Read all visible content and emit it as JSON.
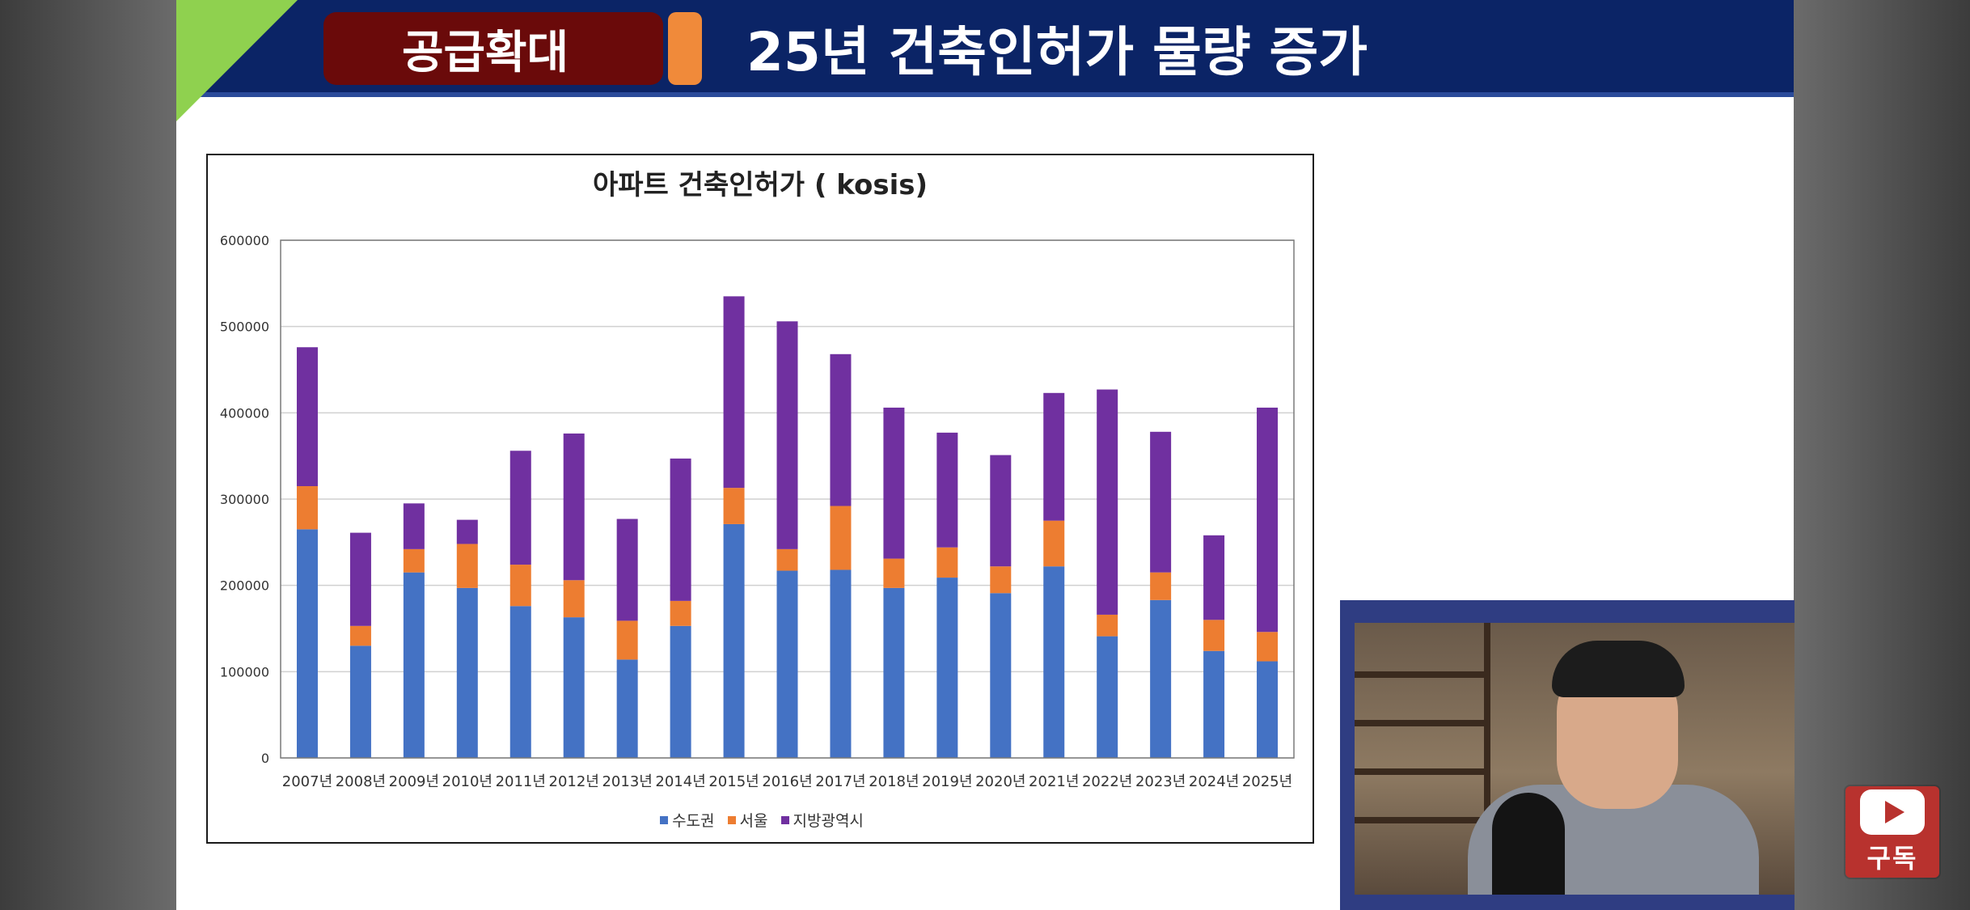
{
  "header": {
    "tag": "공급확대",
    "title": "25년 건축인허가 물량 증가"
  },
  "chart_data": {
    "type": "bar",
    "stacked": true,
    "title": "아파트 건축인허가 ( kosis)",
    "xlabel": "",
    "ylabel": "",
    "ylim": [
      0,
      600000
    ],
    "yticks": [
      "0",
      "100000",
      "200000",
      "300000",
      "400000",
      "500000",
      "600000"
    ],
    "grid": true,
    "legend_position": "bottom",
    "categories": [
      "2007년",
      "2008년",
      "2009년",
      "2010년",
      "2011년",
      "2012년",
      "2013년",
      "2014년",
      "2015년",
      "2016년",
      "2017년",
      "2018년",
      "2019년",
      "2020년",
      "2021년",
      "2022년",
      "2023년",
      "2024년",
      "2025년"
    ],
    "series": [
      {
        "name": "수도권",
        "color": "#4472c4",
        "values": [
          265000,
          130000,
          215000,
          197000,
          176000,
          163000,
          114000,
          153000,
          271000,
          217000,
          218000,
          197000,
          209000,
          191000,
          222000,
          141000,
          183000,
          124000,
          112000
        ]
      },
      {
        "name": "서울",
        "color": "#ed7d31",
        "values": [
          50000,
          23000,
          27000,
          51000,
          48000,
          43000,
          45000,
          29000,
          42000,
          25000,
          74000,
          34000,
          35000,
          31000,
          53000,
          25000,
          32000,
          36000,
          34000
        ]
      },
      {
        "name": "지방광역시",
        "color": "#7030a0",
        "values": [
          161000,
          108000,
          53000,
          28000,
          132000,
          170000,
          118000,
          165000,
          222000,
          264000,
          176000,
          175000,
          133000,
          129000,
          148000,
          261000,
          163000,
          98000,
          260000
        ]
      }
    ]
  },
  "subscribe": {
    "label": "구독",
    "icon": "youtube-play-icon"
  }
}
